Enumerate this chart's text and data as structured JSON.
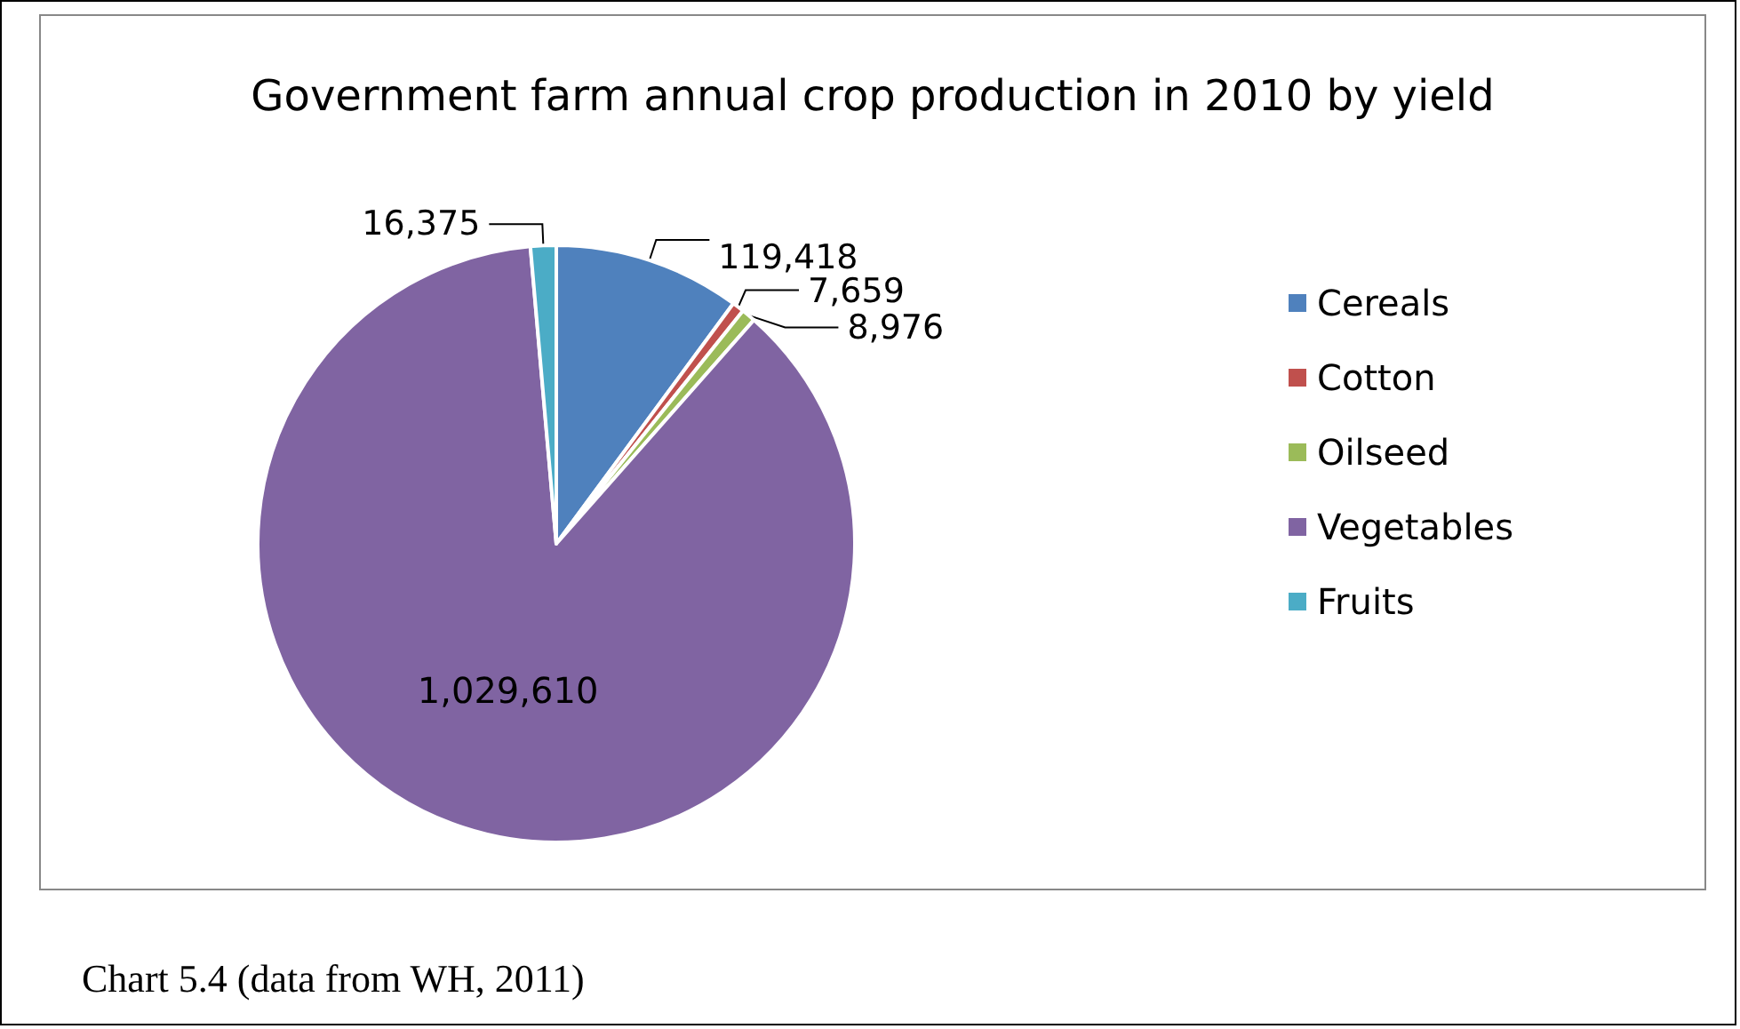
{
  "chart_data": {
    "type": "pie",
    "title": "Government farm annual crop production in 2010 by yield",
    "categories": [
      "Cereals",
      "Cotton",
      "Oilseed",
      "Vegetables",
      "Fruits"
    ],
    "values": [
      119418,
      7659,
      8976,
      1029610,
      16375
    ],
    "colors": [
      "#4f81bd",
      "#c0504d",
      "#9bbb59",
      "#8064a2",
      "#4bacc6"
    ],
    "value_labels": [
      "119,418",
      "7,659",
      "8,976",
      "1,029,610",
      "16,375"
    ],
    "legend": "right",
    "annotations": [
      "Chart 5.4 (data from WH, 2011)"
    ]
  }
}
